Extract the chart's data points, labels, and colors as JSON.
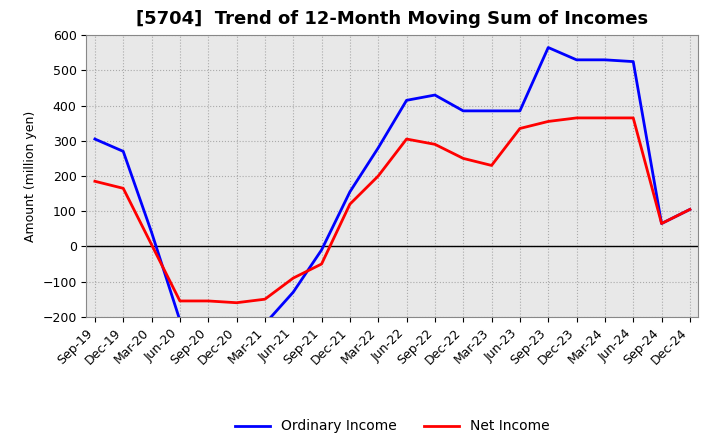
{
  "title": "[5704]  Trend of 12-Month Moving Sum of Incomes",
  "ylabel": "Amount (million yen)",
  "background_color": "#ffffff",
  "plot_bg_color": "#e8e8e8",
  "grid_color": "#aaaaaa",
  "x_labels": [
    "Sep-19",
    "Dec-19",
    "Mar-20",
    "Jun-20",
    "Sep-20",
    "Dec-20",
    "Mar-21",
    "Jun-21",
    "Sep-21",
    "Dec-21",
    "Mar-22",
    "Jun-22",
    "Sep-22",
    "Dec-22",
    "Mar-23",
    "Jun-23",
    "Sep-23",
    "Dec-23",
    "Mar-24",
    "Jun-24",
    "Sep-24",
    "Dec-24"
  ],
  "ordinary_income": [
    305,
    270,
    40,
    -210,
    -225,
    -230,
    -220,
    -130,
    -10,
    155,
    280,
    415,
    430,
    385,
    385,
    385,
    565,
    530,
    530,
    525,
    65,
    105
  ],
  "net_income": [
    185,
    165,
    5,
    -155,
    -155,
    -160,
    -150,
    -90,
    -50,
    120,
    200,
    305,
    290,
    250,
    230,
    335,
    355,
    365,
    365,
    365,
    65,
    105
  ],
  "ordinary_color": "#0000ff",
  "net_color": "#ff0000",
  "ylim": [
    -200,
    600
  ],
  "yticks": [
    -200,
    -100,
    0,
    100,
    200,
    300,
    400,
    500,
    600
  ],
  "line_width": 2.0,
  "title_fontsize": 13,
  "axis_label_fontsize": 9,
  "tick_fontsize": 9,
  "legend_fontsize": 10
}
